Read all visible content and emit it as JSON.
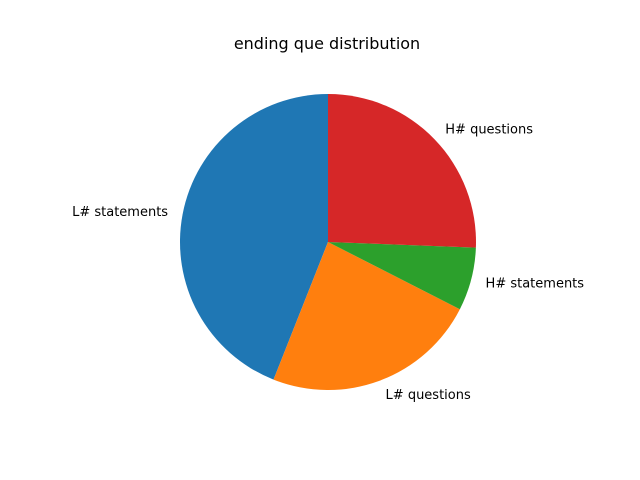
{
  "chart_data": {
    "type": "pie",
    "title": "ending que distribution",
    "start_angle_deg": 90,
    "direction": "counterclockwise",
    "slices": [
      {
        "label": "L# statements",
        "value": 44.0,
        "color": "#1f77b4"
      },
      {
        "label": "L# questions",
        "value": 23.5,
        "color": "#ff7f0e"
      },
      {
        "label": "H# statements",
        "value": 6.9,
        "color": "#2ca02c"
      },
      {
        "label": "H# questions",
        "value": 25.6,
        "color": "#d62728"
      }
    ]
  }
}
